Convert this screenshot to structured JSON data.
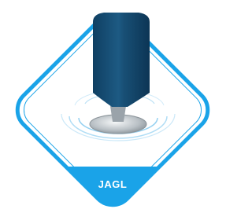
{
  "label": "JAGL"
}
